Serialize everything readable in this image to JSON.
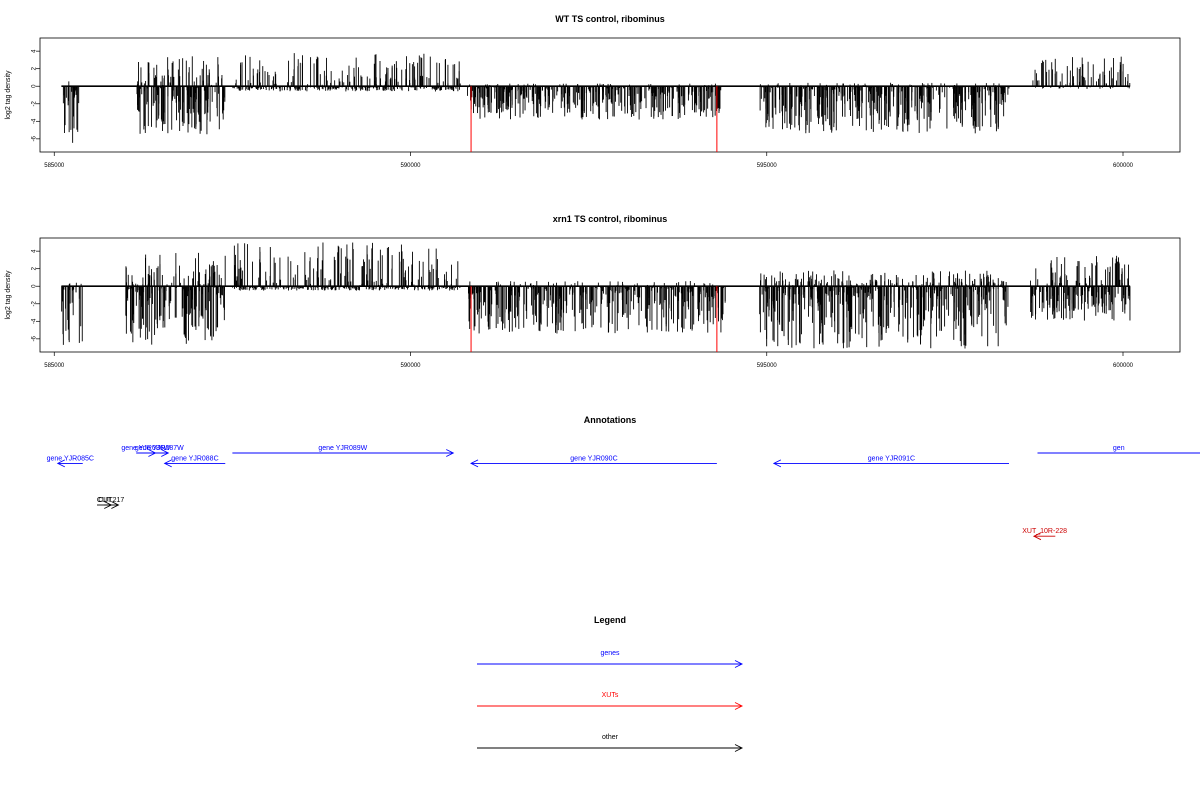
{
  "chart_data": [
    {
      "type": "bar",
      "title": "WT TS control, ribominus",
      "ylabel": "log2 tag density",
      "xlabel": "",
      "xlim": [
        584800,
        600800
      ],
      "ylim": [
        -7.5,
        5.5
      ],
      "xticks": [
        "585000",
        "590000",
        "595000",
        "600000"
      ],
      "yticks": [
        "4",
        "2",
        "0",
        "-2",
        "-4",
        "-6"
      ],
      "highlight_positions": [
        590850,
        594300
      ],
      "highlight_value": -7.5,
      "regions": [
        {
          "from": 585100,
          "to": 585350,
          "pos": 0.6,
          "neg": 6.5
        },
        {
          "from": 586150,
          "to": 587400,
          "pos": 3.5,
          "neg": 5.5
        },
        {
          "from": 587500,
          "to": 590700,
          "pos": 3.8,
          "neg": 0.6
        },
        {
          "from": 590800,
          "to": 594400,
          "pos": 0.3,
          "neg": 3.8
        },
        {
          "from": 594900,
          "to": 598400,
          "pos": 0.4,
          "neg": 5.4
        },
        {
          "from": 598700,
          "to": 600100,
          "pos": 3.4,
          "neg": 0.3
        }
      ]
    },
    {
      "type": "bar",
      "title": "xrn1 TS control, ribominus",
      "ylabel": "log2 tag density",
      "xlabel": "",
      "xlim": [
        584800,
        600800
      ],
      "ylim": [
        -7.5,
        5.5
      ],
      "xticks": [
        "585000",
        "590000",
        "595000",
        "600000"
      ],
      "yticks": [
        "4",
        "2",
        "0",
        "-2",
        "-4",
        "-6"
      ],
      "highlight_positions": [
        590850,
        594300
      ],
      "highlight_value": -7.5,
      "regions": [
        {
          "from": 585100,
          "to": 585400,
          "pos": 0.5,
          "neg": 7.0
        },
        {
          "from": 586000,
          "to": 587400,
          "pos": 3.8,
          "neg": 6.7
        },
        {
          "from": 587500,
          "to": 590700,
          "pos": 5.0,
          "neg": 0.5
        },
        {
          "from": 590800,
          "to": 594450,
          "pos": 0.6,
          "neg": 5.4
        },
        {
          "from": 594900,
          "to": 598400,
          "pos": 1.8,
          "neg": 7.2
        },
        {
          "from": 598700,
          "to": 600100,
          "pos": 3.5,
          "neg": 4.0
        }
      ]
    }
  ],
  "annotations": {
    "title": "Annotations",
    "items": [
      {
        "label": "gene YJR085C",
        "start": 585400,
        "end": 585050,
        "row": 1,
        "color": "#0000ff"
      },
      {
        "label": "gene YJR086W",
        "start": 586150,
        "end": 586420,
        "row": 0,
        "color": "#0000ff"
      },
      {
        "label": "gene YJR087W",
        "start": 586350,
        "end": 586600,
        "row": 0,
        "color": "#0000ff"
      },
      {
        "label": "gene YJR088C",
        "start": 587400,
        "end": 586550,
        "row": 1,
        "color": "#0000ff"
      },
      {
        "label": "gene YJR089W",
        "start": 587500,
        "end": 590600,
        "row": 0,
        "color": "#0000ff"
      },
      {
        "label": "gene YJR090C",
        "start": 594300,
        "end": 590850,
        "row": 1,
        "color": "#0000ff"
      },
      {
        "label": "gene YJR091C",
        "start": 598400,
        "end": 595100,
        "row": 1,
        "color": "#0000ff"
      },
      {
        "label": "gen",
        "start": 598800,
        "end": 601500,
        "row": 0,
        "color": "#0000ff"
      },
      {
        "label": "CUT",
        "start": 585600,
        "end": 585800,
        "row": 5,
        "color": "#000000"
      },
      {
        "label": "CUT217",
        "start": 585700,
        "end": 585900,
        "row": 5,
        "color": "#000000"
      },
      {
        "label": "XUT_10R-228",
        "start": 599050,
        "end": 598750,
        "row": 8,
        "color": "#cc0000"
      }
    ]
  },
  "legend": {
    "title": "Legend",
    "items": [
      {
        "label": "genes",
        "color": "#0000ff"
      },
      {
        "label": "XUTs",
        "color": "#ff0000"
      },
      {
        "label": "other",
        "color": "#000000"
      }
    ]
  }
}
